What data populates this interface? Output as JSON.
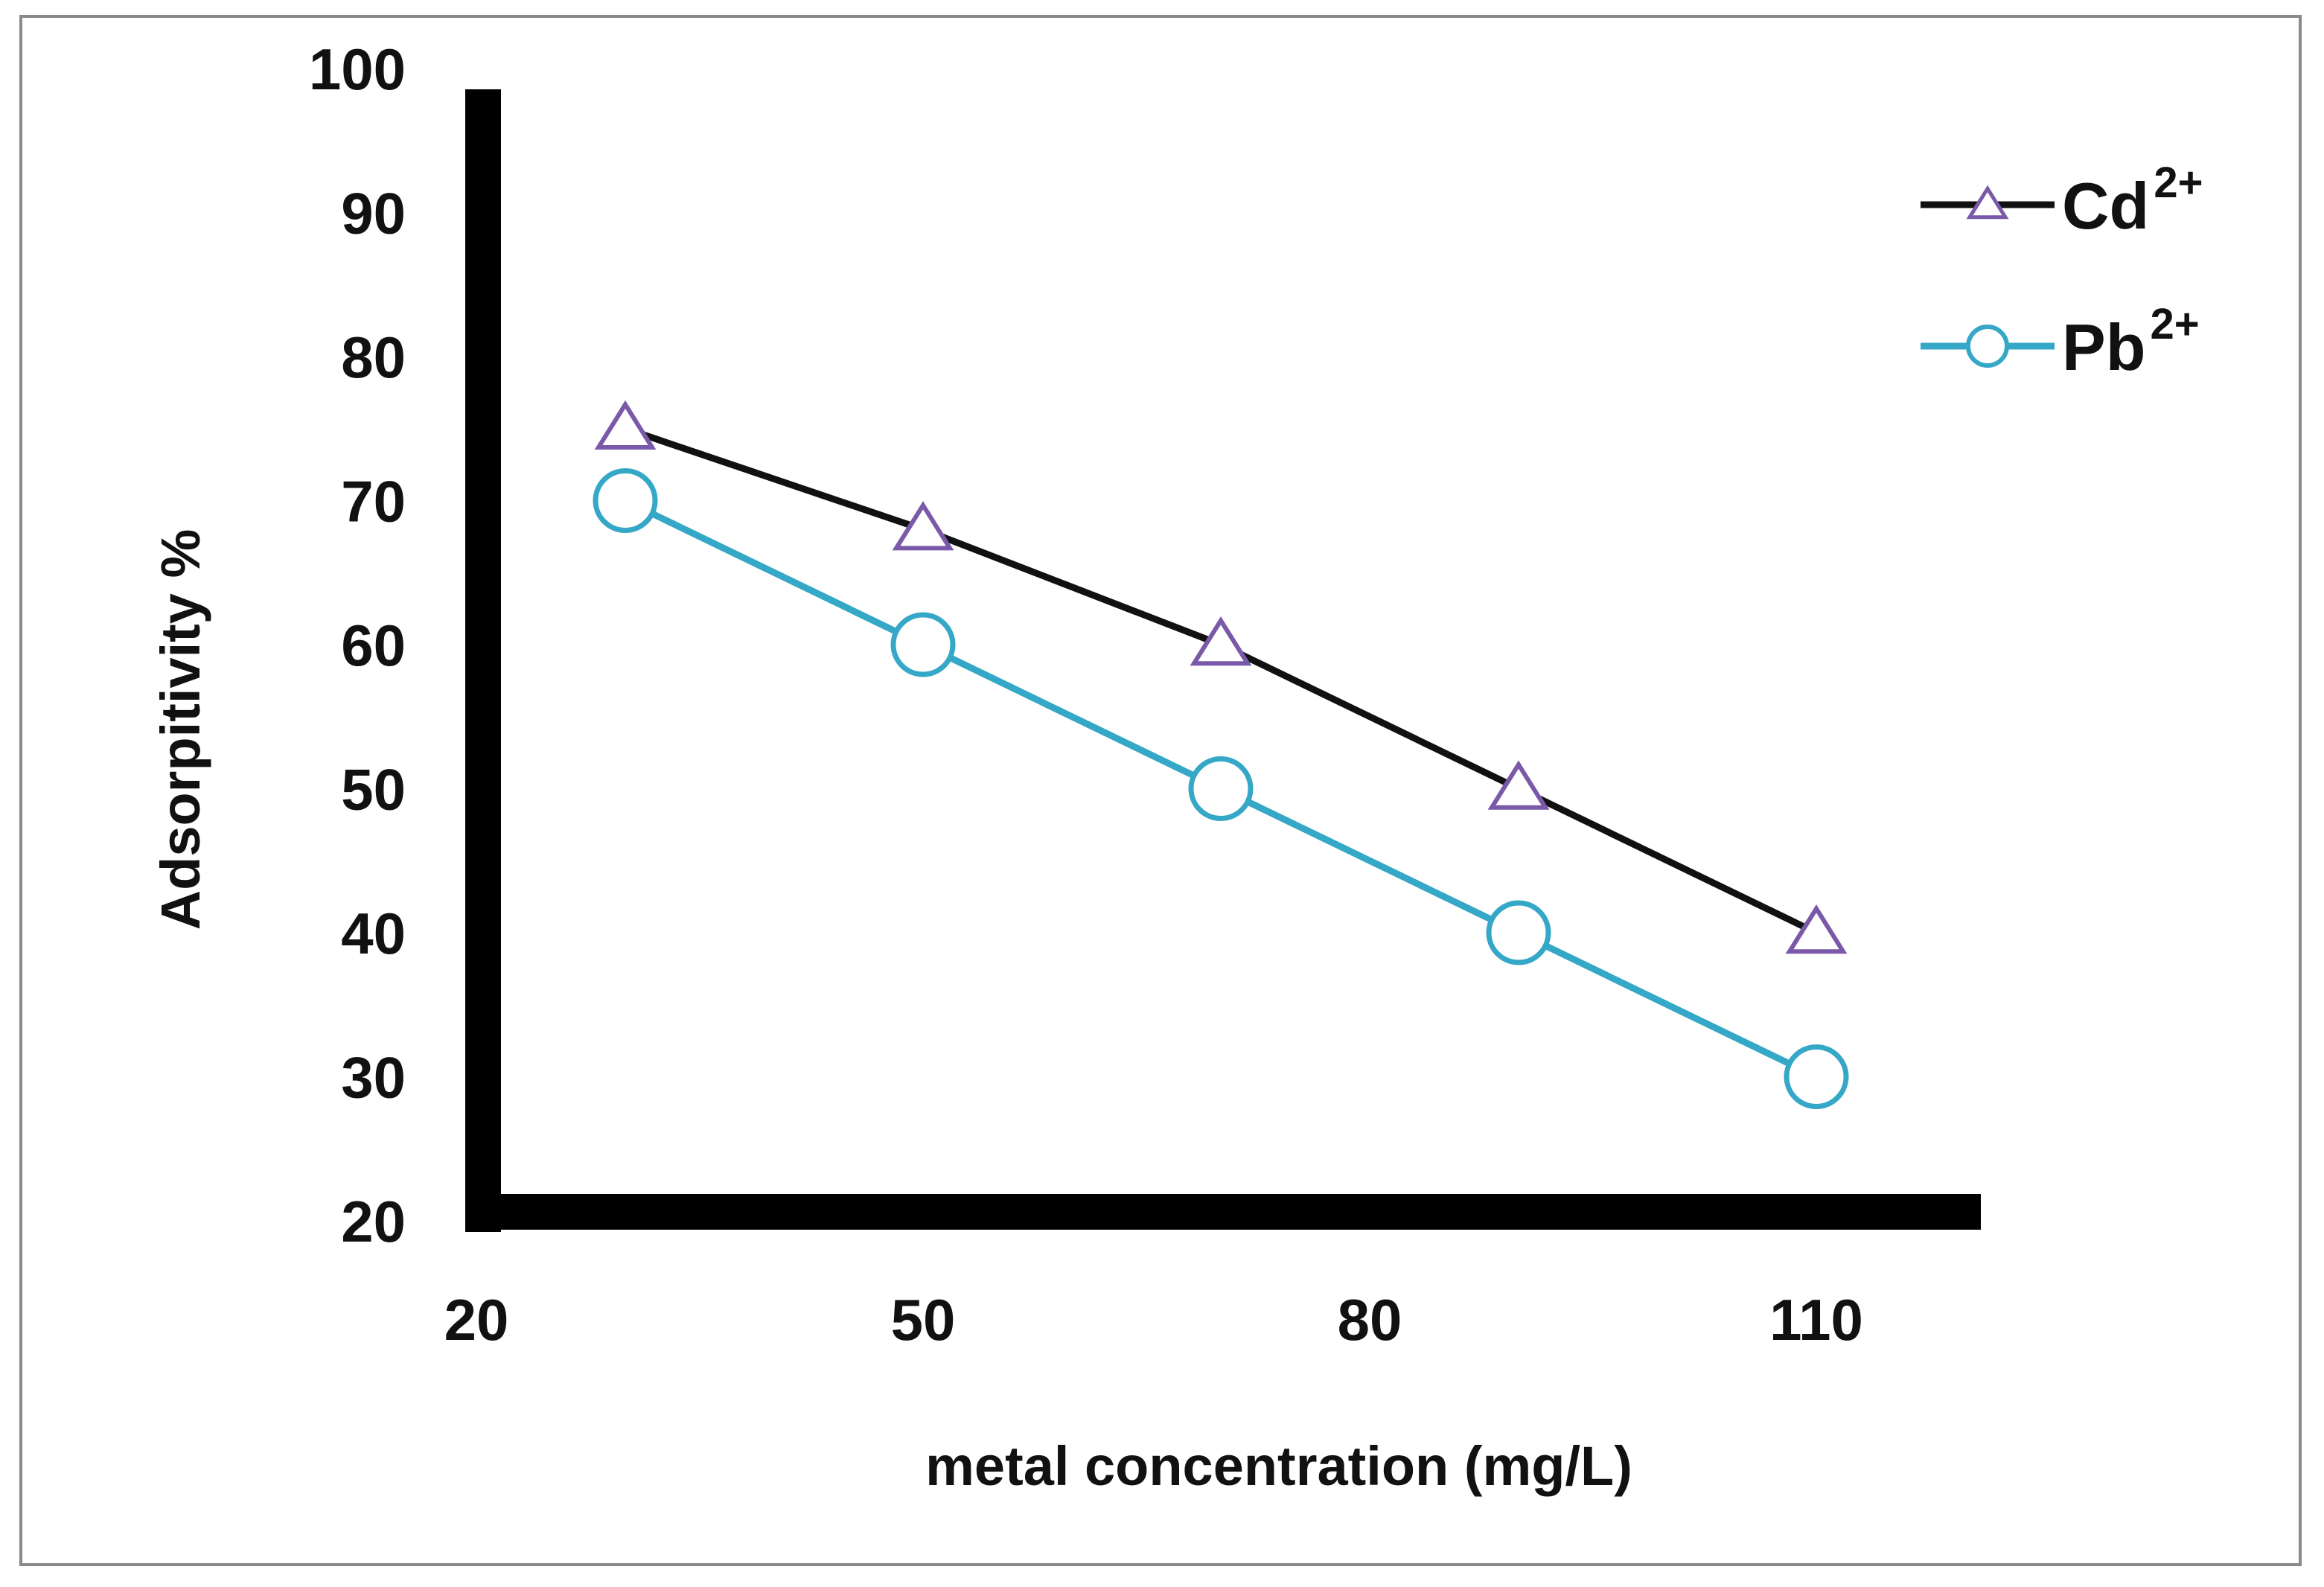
{
  "chart_data": {
    "type": "line",
    "title": "",
    "xlabel": "metal concentration (mg/L)",
    "ylabel": "Adsorpitivity %",
    "xlim": [
      20,
      120
    ],
    "ylim": [
      20,
      100
    ],
    "x_ticks": [
      20,
      50,
      80,
      110
    ],
    "y_ticks": [
      20,
      30,
      40,
      50,
      60,
      70,
      80,
      90,
      100
    ],
    "x_tick_labels": [
      "20",
      "50",
      "80",
      "110"
    ],
    "y_tick_labels": [
      "20",
      "30",
      "40",
      "50",
      "60",
      "70",
      "80",
      "90",
      "100"
    ],
    "grid": false,
    "legend_position": "top-right",
    "x": [
      30,
      50,
      70,
      90,
      110
    ],
    "series": [
      {
        "name": "Cd",
        "superscript": "2+",
        "marker": "triangle",
        "line_color": "#111111",
        "marker_color": "#7a5aa8",
        "values": [
          75,
          68,
          60,
          50,
          40
        ]
      },
      {
        "name": "Pb",
        "superscript": "2+",
        "marker": "circle",
        "line_color": "#35a7c7",
        "marker_color": "#35a7c7",
        "values": [
          70,
          60,
          50,
          40,
          30
        ]
      }
    ]
  }
}
